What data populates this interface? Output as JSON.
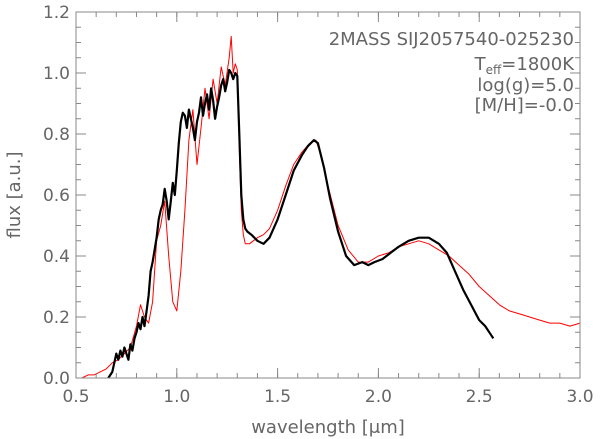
{
  "chart_data": {
    "type": "line",
    "xlabel": "wavelength [μm]",
    "ylabel": "flux [a.u.]",
    "xlim": [
      0.5,
      3.0
    ],
    "ylim": [
      0.0,
      1.2
    ],
    "xticks": [
      "0.5",
      "1.0",
      "1.5",
      "2.0",
      "2.5",
      "3.0"
    ],
    "yticks": [
      "0.0",
      "0.2",
      "0.4",
      "0.6",
      "0.8",
      "1.0",
      "1.2"
    ],
    "grid": false,
    "annotations": {
      "object": "2MASS SIJ2057540-025230",
      "teff_main": "T",
      "teff_sub": "eff",
      "teff_value": "=1800K",
      "logg": "log(g)=5.0",
      "metallicity": "[M/H]=-0.0"
    },
    "series": [
      {
        "color": "#000000",
        "x": [
          0.66,
          0.68,
          0.69,
          0.7,
          0.71,
          0.72,
          0.73,
          0.74,
          0.75,
          0.76,
          0.77,
          0.78,
          0.79,
          0.8,
          0.81,
          0.82,
          0.83,
          0.84,
          0.85,
          0.86,
          0.87,
          0.88,
          0.89,
          0.9,
          0.91,
          0.92,
          0.93,
          0.94,
          0.95,
          0.96,
          0.97,
          0.98,
          0.99,
          1.0,
          1.01,
          1.02,
          1.03,
          1.04,
          1.05,
          1.06,
          1.07,
          1.08,
          1.09,
          1.1,
          1.11,
          1.12,
          1.13,
          1.14,
          1.15,
          1.16,
          1.17,
          1.18,
          1.19,
          1.2,
          1.21,
          1.22,
          1.23,
          1.24,
          1.25,
          1.26,
          1.27,
          1.28,
          1.29,
          1.3,
          1.31,
          1.32,
          1.33,
          1.34,
          1.35,
          1.37,
          1.4,
          1.43,
          1.46,
          1.5,
          1.54,
          1.58,
          1.62,
          1.65,
          1.68,
          1.7,
          1.73,
          1.76,
          1.8,
          1.84,
          1.88,
          1.92,
          1.95,
          1.98,
          2.02,
          2.06,
          2.1,
          2.15,
          2.2,
          2.25,
          2.3,
          2.34,
          2.38,
          2.42,
          2.46,
          2.5,
          2.53,
          2.55,
          2.56,
          2.57
        ],
        "y": [
          0.0,
          0.02,
          0.05,
          0.08,
          0.06,
          0.09,
          0.07,
          0.1,
          0.08,
          0.06,
          0.11,
          0.09,
          0.13,
          0.15,
          0.18,
          0.16,
          0.2,
          0.17,
          0.22,
          0.27,
          0.35,
          0.38,
          0.42,
          0.46,
          0.52,
          0.55,
          0.57,
          0.62,
          0.58,
          0.52,
          0.58,
          0.64,
          0.6,
          0.68,
          0.77,
          0.84,
          0.87,
          0.86,
          0.82,
          0.88,
          0.85,
          0.82,
          0.78,
          0.84,
          0.87,
          0.92,
          0.86,
          0.9,
          0.93,
          0.88,
          0.95,
          0.91,
          0.85,
          0.89,
          0.92,
          0.96,
          0.98,
          0.94,
          0.97,
          1.01,
          1.0,
          0.98,
          1.0,
          0.99,
          0.8,
          0.6,
          0.52,
          0.49,
          0.48,
          0.47,
          0.45,
          0.44,
          0.46,
          0.52,
          0.6,
          0.68,
          0.73,
          0.76,
          0.78,
          0.77,
          0.69,
          0.59,
          0.48,
          0.4,
          0.37,
          0.38,
          0.37,
          0.38,
          0.39,
          0.41,
          0.43,
          0.45,
          0.46,
          0.46,
          0.44,
          0.41,
          0.35,
          0.29,
          0.24,
          0.19,
          0.17,
          0.15,
          0.14,
          0.13
        ]
      },
      {
        "color": "#ff0000",
        "x": [
          0.5,
          0.53,
          0.56,
          0.59,
          0.62,
          0.65,
          0.68,
          0.71,
          0.74,
          0.77,
          0.8,
          0.82,
          0.84,
          0.86,
          0.88,
          0.9,
          0.92,
          0.94,
          0.96,
          0.98,
          1.0,
          1.02,
          1.04,
          1.06,
          1.08,
          1.1,
          1.12,
          1.14,
          1.16,
          1.18,
          1.2,
          1.22,
          1.24,
          1.26,
          1.27,
          1.28,
          1.29,
          1.3,
          1.31,
          1.32,
          1.33,
          1.34,
          1.36,
          1.38,
          1.4,
          1.43,
          1.46,
          1.5,
          1.54,
          1.58,
          1.62,
          1.66,
          1.69,
          1.72,
          1.75,
          1.8,
          1.85,
          1.9,
          1.95,
          2.0,
          2.05,
          2.1,
          2.15,
          2.2,
          2.25,
          2.3,
          2.35,
          2.4,
          2.45,
          2.5,
          2.55,
          2.6,
          2.65,
          2.7,
          2.75,
          2.8,
          2.85,
          2.9,
          2.95,
          3.0
        ],
        "y": [
          0.0,
          0.0,
          0.01,
          0.01,
          0.02,
          0.03,
          0.05,
          0.06,
          0.08,
          0.1,
          0.17,
          0.24,
          0.2,
          0.18,
          0.25,
          0.45,
          0.5,
          0.58,
          0.4,
          0.25,
          0.22,
          0.35,
          0.55,
          0.78,
          0.88,
          0.7,
          0.82,
          0.95,
          0.85,
          0.98,
          0.9,
          1.02,
          0.96,
          1.05,
          1.12,
          1.0,
          1.03,
          1.01,
          0.75,
          0.55,
          0.47,
          0.44,
          0.44,
          0.45,
          0.46,
          0.47,
          0.49,
          0.55,
          0.63,
          0.7,
          0.74,
          0.77,
          0.78,
          0.72,
          0.63,
          0.5,
          0.42,
          0.38,
          0.38,
          0.4,
          0.41,
          0.43,
          0.44,
          0.45,
          0.44,
          0.42,
          0.4,
          0.37,
          0.34,
          0.3,
          0.27,
          0.24,
          0.22,
          0.21,
          0.2,
          0.19,
          0.18,
          0.18,
          0.17,
          0.18
        ]
      }
    ]
  }
}
